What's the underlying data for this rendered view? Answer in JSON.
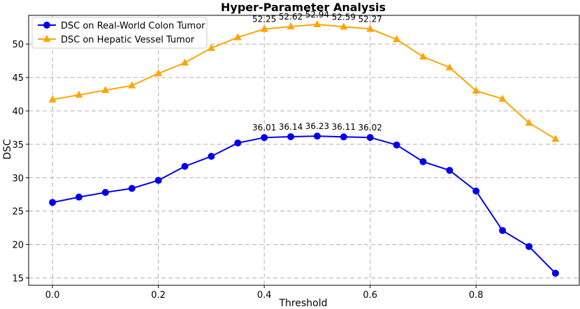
{
  "chart_data": {
    "type": "line",
    "title": "Hyper-Parameter Analysis",
    "xlabel": "Threshold",
    "ylabel": "DSC",
    "xlim": [
      -0.045,
      0.995
    ],
    "ylim": [
      13.9,
      54.3
    ],
    "xticks": [
      0.0,
      0.2,
      0.4,
      0.6,
      0.8
    ],
    "xtick_labels": [
      "0.0",
      "0.2",
      "0.4",
      "0.6",
      "0.8"
    ],
    "yticks": [
      15,
      20,
      25,
      30,
      35,
      40,
      45,
      50
    ],
    "ytick_labels": [
      "15",
      "20",
      "25",
      "30",
      "35",
      "40",
      "45",
      "50"
    ],
    "grid": true,
    "legend_position": "top-left",
    "x": [
      0.0,
      0.05,
      0.1,
      0.15,
      0.2,
      0.25,
      0.3,
      0.35,
      0.4,
      0.45,
      0.5,
      0.55,
      0.6,
      0.65,
      0.7,
      0.75,
      0.8,
      0.85,
      0.9,
      0.95
    ],
    "series": [
      {
        "name": "DSC on Real-World Colon Tumor",
        "color": "#0000ee",
        "marker": "circle",
        "values": [
          26.3,
          27.1,
          27.8,
          28.4,
          29.6,
          31.7,
          33.2,
          35.2,
          36.01,
          36.14,
          36.23,
          36.11,
          36.02,
          34.9,
          32.4,
          31.1,
          28.0,
          22.1,
          19.7,
          15.7
        ],
        "annotations": [
          {
            "x": 0.4,
            "label": "36.01"
          },
          {
            "x": 0.45,
            "label": "36.14"
          },
          {
            "x": 0.5,
            "label": "36.23"
          },
          {
            "x": 0.55,
            "label": "36.11"
          },
          {
            "x": 0.6,
            "label": "36.02"
          }
        ]
      },
      {
        "name": "DSC on Hepatic Vessel Tumor",
        "color": "#ffa500",
        "marker": "triangle",
        "values": [
          41.7,
          42.4,
          43.1,
          43.8,
          45.6,
          47.2,
          49.4,
          51.0,
          52.25,
          52.62,
          52.94,
          52.59,
          52.27,
          50.7,
          48.1,
          46.5,
          43.0,
          41.8,
          38.2,
          35.8
        ],
        "annotations": [
          {
            "x": 0.4,
            "label": "52.25"
          },
          {
            "x": 0.45,
            "label": "52.62"
          },
          {
            "x": 0.5,
            "label": "52.94"
          },
          {
            "x": 0.55,
            "label": "52.59"
          },
          {
            "x": 0.6,
            "label": "52.27"
          }
        ]
      }
    ]
  }
}
